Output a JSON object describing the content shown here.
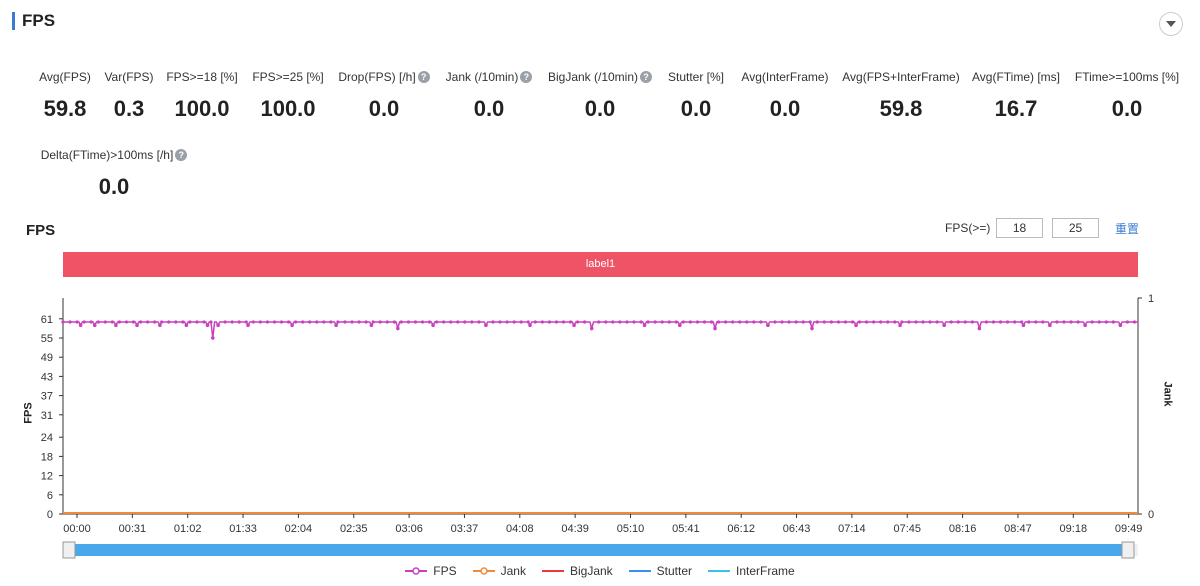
{
  "header": {
    "title": "FPS"
  },
  "stats": [
    {
      "label": "Avg(FPS)",
      "value": "59.8",
      "help": false
    },
    {
      "label": "Var(FPS)",
      "value": "0.3",
      "help": false
    },
    {
      "label": "FPS>=18 [%]",
      "value": "100.0",
      "help": false
    },
    {
      "label": "FPS>=25 [%]",
      "value": "100.0",
      "help": false
    },
    {
      "label": "Drop(FPS) [/h]",
      "value": "0.0",
      "help": true
    },
    {
      "label": "Jank (/10min)",
      "value": "0.0",
      "help": true
    },
    {
      "label": "BigJank (/10min)",
      "value": "0.0",
      "help": true
    },
    {
      "label": "Stutter [%]",
      "value": "0.0",
      "help": false
    },
    {
      "label": "Avg(InterFrame)",
      "value": "0.0",
      "help": false
    },
    {
      "label": "Avg(FPS+InterFrame)",
      "value": "59.8",
      "help": false
    },
    {
      "label": "Avg(FTime) [ms]",
      "value": "16.7",
      "help": false
    },
    {
      "label": "FTime>=100ms [%]",
      "value": "0.0",
      "help": false
    },
    {
      "label": "Delta(FTime)>100ms [/h]",
      "value": "0.0",
      "help": true
    }
  ],
  "chart_section": {
    "title": "FPS",
    "threshold_label": "FPS(>=)",
    "threshold_1": "18",
    "threshold_2": "25",
    "reset_label": "重置",
    "label_band": "label1"
  },
  "colors": {
    "fps": "#c940c0",
    "jank": "#f08a3c",
    "bigjank": "#e8393c",
    "stutter": "#3b8fe8",
    "interframe": "#38c3e6",
    "label_band": "#ef5466",
    "slider": "#4aa8ea"
  },
  "chart_data": {
    "type": "line",
    "y_left_label": "FPS",
    "y_left_ticks": [
      "0",
      "6",
      "12",
      "18",
      "24",
      "31",
      "37",
      "43",
      "49",
      "55",
      "61"
    ],
    "y_left_range": [
      0,
      67.5
    ],
    "y_right_label": "Jank",
    "y_right_ticks": [
      "0",
      "1"
    ],
    "x_tick_labels": [
      "00:00",
      "00:31",
      "01:02",
      "01:33",
      "02:04",
      "02:35",
      "03:06",
      "03:37",
      "04:08",
      "04:39",
      "05:10",
      "05:41",
      "06:12",
      "06:43",
      "07:14",
      "07:45",
      "08:16",
      "08:47",
      "09:18",
      "09:49"
    ],
    "x_range_seconds": [
      0,
      610
    ],
    "fps_baseline": 60,
    "fps_dips": [
      {
        "t": 10,
        "v": 59
      },
      {
        "t": 18,
        "v": 59
      },
      {
        "t": 30,
        "v": 59
      },
      {
        "t": 42,
        "v": 59
      },
      {
        "t": 55,
        "v": 59
      },
      {
        "t": 70,
        "v": 59
      },
      {
        "t": 82,
        "v": 59
      },
      {
        "t": 85,
        "v": 55
      },
      {
        "t": 88,
        "v": 59
      },
      {
        "t": 105,
        "v": 59
      },
      {
        "t": 130,
        "v": 59
      },
      {
        "t": 155,
        "v": 59
      },
      {
        "t": 175,
        "v": 59
      },
      {
        "t": 190,
        "v": 58
      },
      {
        "t": 210,
        "v": 59
      },
      {
        "t": 240,
        "v": 59
      },
      {
        "t": 265,
        "v": 59
      },
      {
        "t": 290,
        "v": 59
      },
      {
        "t": 300,
        "v": 58
      },
      {
        "t": 330,
        "v": 59
      },
      {
        "t": 350,
        "v": 59
      },
      {
        "t": 370,
        "v": 58
      },
      {
        "t": 400,
        "v": 59
      },
      {
        "t": 425,
        "v": 58
      },
      {
        "t": 450,
        "v": 59
      },
      {
        "t": 475,
        "v": 59
      },
      {
        "t": 500,
        "v": 59
      },
      {
        "t": 520,
        "v": 58
      },
      {
        "t": 545,
        "v": 59
      },
      {
        "t": 560,
        "v": 59
      },
      {
        "t": 580,
        "v": 59
      },
      {
        "t": 600,
        "v": 59
      }
    ],
    "series": [
      {
        "name": "FPS"
      },
      {
        "name": "Jank"
      },
      {
        "name": "BigJank"
      },
      {
        "name": "Stutter"
      },
      {
        "name": "InterFrame"
      }
    ]
  }
}
